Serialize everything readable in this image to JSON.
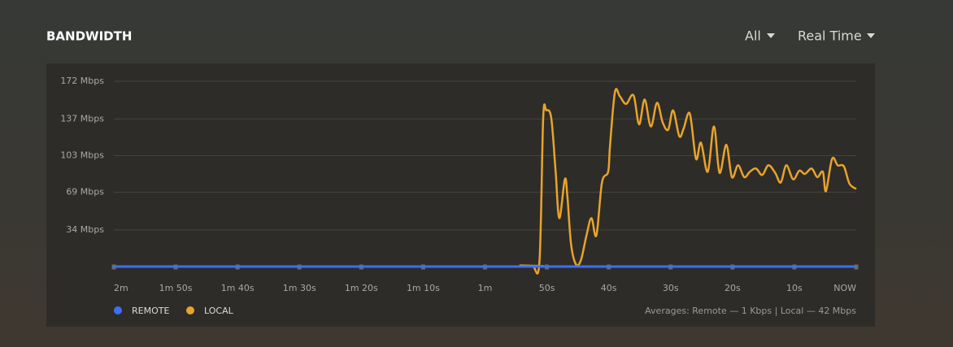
{
  "controls": {
    "filter": "All",
    "range": "Real Time"
  },
  "chart_data": {
    "type": "line",
    "title": "BANDWIDTH",
    "annotation": "Averages: Remote — 1 Kbps | Local — 42 Mbps",
    "xlim": [
      -120,
      0
    ],
    "xticks": [
      {
        "value": -120,
        "label": "2m"
      },
      {
        "value": -110,
        "label": "1m 50s"
      },
      {
        "value": -100,
        "label": "1m 40s"
      },
      {
        "value": -90,
        "label": "1m 30s"
      },
      {
        "value": -80,
        "label": "1m 20s"
      },
      {
        "value": -70,
        "label": "1m 10s"
      },
      {
        "value": -60,
        "label": "1m"
      },
      {
        "value": -50,
        "label": "50s"
      },
      {
        "value": -40,
        "label": "40s"
      },
      {
        "value": -30,
        "label": "30s"
      },
      {
        "value": -20,
        "label": "20s"
      },
      {
        "value": -10,
        "label": "10s"
      },
      {
        "value": 0,
        "label": "NOW"
      }
    ],
    "ylim": [
      0,
      172
    ],
    "yticks": [
      {
        "value": 34,
        "label": "34 Mbps"
      },
      {
        "value": 69,
        "label": "69 Mbps"
      },
      {
        "value": 103,
        "label": "103 Mbps"
      },
      {
        "value": 137,
        "label": "137 Mbps"
      },
      {
        "value": 172,
        "label": "172 Mbps"
      }
    ],
    "grid": true,
    "series": [
      {
        "name": "REMOTE",
        "color": "#3d6ff2",
        "x": [
          -120,
          0
        ],
        "values": [
          0,
          0
        ]
      },
      {
        "name": "LOCAL",
        "color": "#e8a42a",
        "x": [
          -120,
          -55.6,
          -54.3,
          -52.3,
          -51.2,
          -50.6,
          -50.1,
          -49.3,
          -48.6,
          -48.0,
          -47.1,
          -46.7,
          -46.1,
          -45.3,
          -44.5,
          -43.6,
          -42.8,
          -42.0,
          -41.1,
          -40.1,
          -39.8,
          -39.0,
          -38.2,
          -37.2,
          -36.0,
          -35.1,
          -34.2,
          -33.2,
          -32.2,
          -31.3,
          -30.4,
          -29.6,
          -28.6,
          -27.9,
          -26.9,
          -25.9,
          -25.1,
          -24.0,
          -23.0,
          -22.1,
          -21.0,
          -20.1,
          -19.1,
          -18.1,
          -17.2,
          -16.2,
          -15.2,
          -14.2,
          -13.1,
          -12.2,
          -11.3,
          -10.2,
          -9.2,
          -8.3,
          -7.2,
          -6.3,
          -5.4,
          -4.9,
          -3.9,
          -3.0,
          -2.0,
          -1.1,
          0
        ],
        "values": [
          0,
          0,
          1,
          0,
          5,
          138,
          145,
          138,
          89,
          45,
          81,
          66,
          21,
          2,
          6,
          29,
          45,
          29,
          78,
          88,
          112,
          162,
          158,
          151,
          159,
          132,
          155,
          130,
          152,
          134,
          127,
          145,
          121,
          128,
          142,
          100,
          115,
          88,
          130,
          87,
          113,
          83,
          94,
          83,
          88,
          91,
          85,
          94,
          87,
          78,
          94,
          81,
          89,
          86,
          91,
          83,
          88,
          70,
          100,
          94,
          93,
          77,
          72
        ]
      }
    ]
  }
}
